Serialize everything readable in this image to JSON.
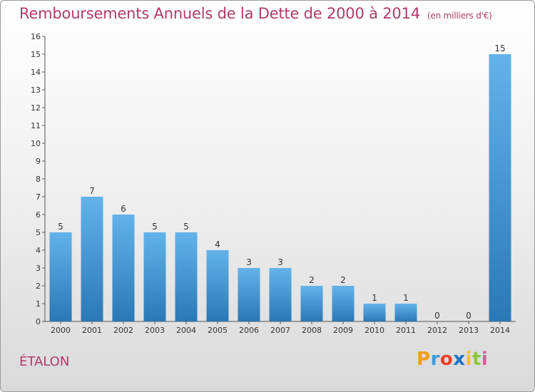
{
  "title": "Remboursements Annuels de la Dette de 2000 à 2014",
  "unit": "(en milliers d'€)",
  "commune": "ÉTALON",
  "logo": {
    "letters": [
      "P",
      "r",
      "o",
      "x",
      "i",
      "t",
      "i"
    ],
    "colors": [
      "#f0a010",
      "#3a9ad9",
      "#e8402a",
      "#1f70c0",
      "#f3c416",
      "#8cc63e",
      "#e05aa0"
    ]
  },
  "colors": {
    "accent": "#b03a6a",
    "bar_top": "#63b3ea",
    "bar_bottom": "#2a78b6",
    "text": "#333333"
  },
  "chart_data": {
    "type": "bar",
    "title": "Remboursements Annuels de la Dette de 2000 à 2014",
    "categories": [
      "2000",
      "2001",
      "2002",
      "2003",
      "2004",
      "2005",
      "2006",
      "2007",
      "2008",
      "2009",
      "2010",
      "2011",
      "2012",
      "2013",
      "2014"
    ],
    "values": [
      5,
      7,
      6,
      5,
      5,
      4,
      3,
      3,
      2,
      2,
      1,
      1,
      0,
      0,
      15
    ],
    "ylim": [
      0,
      16
    ],
    "yticks": [
      0,
      1,
      2,
      3,
      4,
      5,
      6,
      7,
      8,
      9,
      10,
      11,
      12,
      13,
      14,
      15,
      16
    ],
    "grid": false,
    "legend": "none"
  }
}
